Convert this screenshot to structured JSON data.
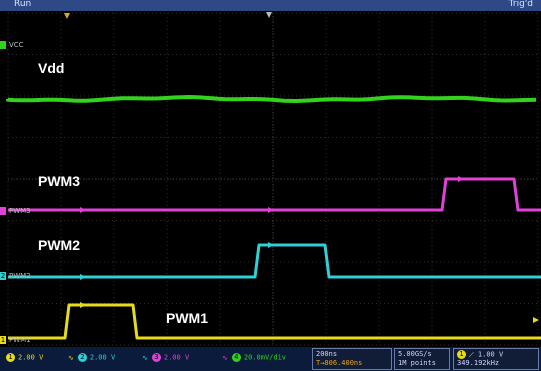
{
  "header": {
    "run_label": "Run",
    "trig_label": "Trig'd"
  },
  "channels": [
    {
      "name": "VCC",
      "marker": "",
      "color": "#32d21e",
      "label": "Vdd"
    },
    {
      "name": "PWM3",
      "marker": "",
      "color": "#e042d8",
      "label": "PWM3"
    },
    {
      "name": "PWM2",
      "marker": "2",
      "color": "#2ed1d6",
      "label": "PWM2"
    },
    {
      "name": "PWM1",
      "marker": "1",
      "color": "#e8dc1a",
      "label": "PWM1"
    }
  ],
  "status": {
    "ch1": {
      "badge": "1",
      "value": "2.00 V"
    },
    "ch2": {
      "badge": "2",
      "value": "2.00 V"
    },
    "ch3": {
      "badge": "3",
      "value": "2.00 V"
    },
    "ch4": {
      "badge": "4",
      "value": "20.0mV/div"
    },
    "timebase": "200ns",
    "delay": "T→806.400ns",
    "sample_rate": "5.00GS/s",
    "record_length": "1M points",
    "trigger_channel": "1",
    "trigger_level": "1.00 V",
    "frequency": "349.192kHz"
  },
  "colors": {
    "background": "#000000",
    "grid": "#3a3a3a",
    "topbar": "#2d4a87",
    "statusbar": "#0b1b3c"
  }
}
